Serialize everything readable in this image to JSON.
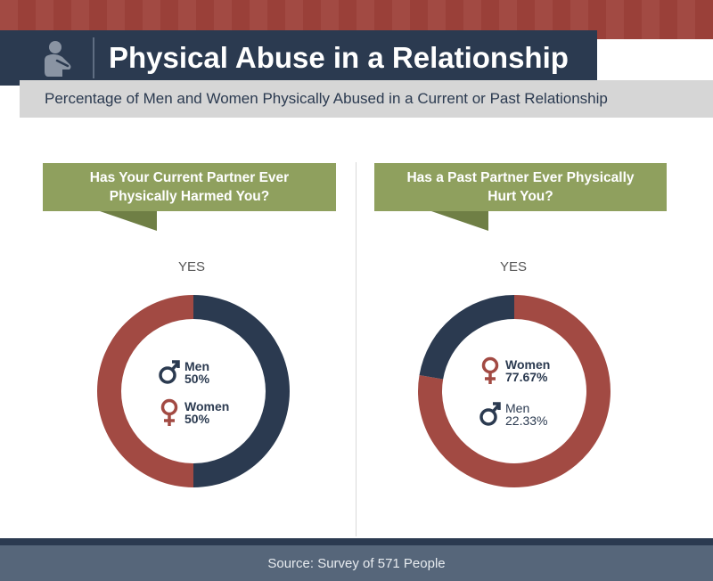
{
  "header": {
    "title": "Physical Abuse in a Relationship",
    "subtitle": "Percentage of Men and Women Physically Abused in a Current or Past Relationship"
  },
  "colors": {
    "navy": "#2b3a50",
    "red": "#a24a43",
    "olive": "#8fa05e"
  },
  "chart_data": [
    {
      "type": "pie",
      "style": "donut",
      "title": "Has Your Current Partner Ever Physically Harmed You?",
      "label": "YES",
      "slices": [
        {
          "name": "Men",
          "value": 50,
          "display": "50%",
          "color": "#2b3a50",
          "symbol": "male-icon"
        },
        {
          "name": "Women",
          "value": 50,
          "display": "50%",
          "color": "#a24a43",
          "symbol": "female-icon"
        }
      ]
    },
    {
      "type": "pie",
      "style": "donut",
      "title": "Has a Past Partner Ever Physically Hurt You?",
      "label": "YES",
      "slices": [
        {
          "name": "Women",
          "value": 77.67,
          "display": "77.67%",
          "color": "#a24a43",
          "symbol": "female-icon"
        },
        {
          "name": "Men",
          "value": 22.33,
          "display": "22.33%",
          "color": "#2b3a50",
          "symbol": "male-icon"
        }
      ]
    }
  ],
  "footer": {
    "source": "Source: Survey of 571 People"
  }
}
